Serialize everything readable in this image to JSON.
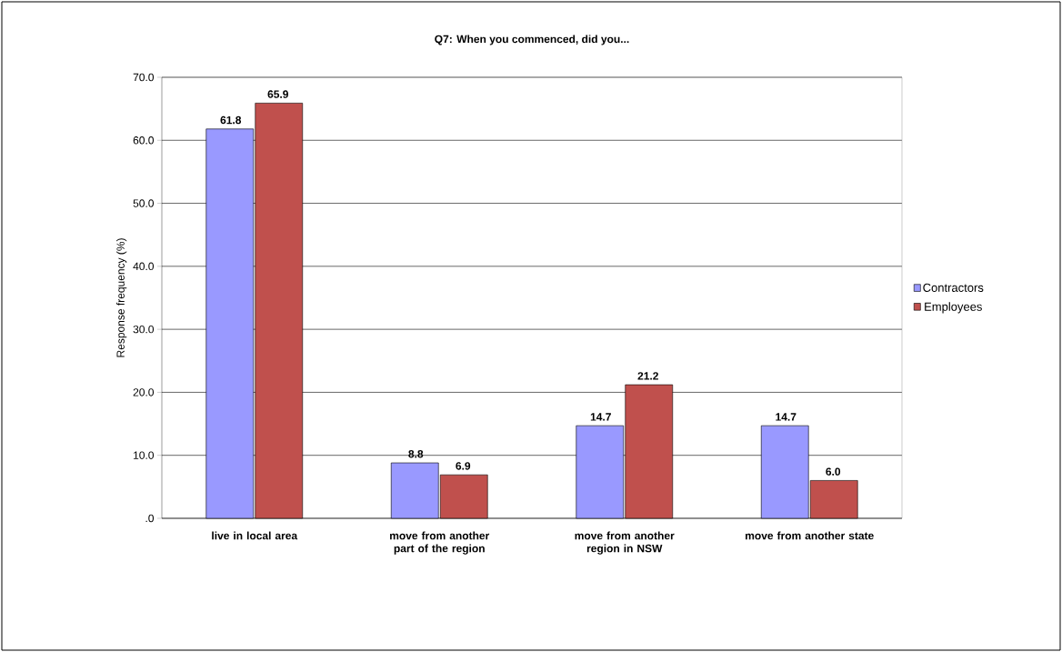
{
  "chart_data": {
    "type": "bar",
    "title": "Q7: When you commenced, did you...",
    "ylabel": "Response frequency (%)",
    "categories": [
      "live in local area",
      "move from another part of the region",
      "move from another region in NSW",
      "move from another state"
    ],
    "series": [
      {
        "name": "Contractors",
        "color": "#9999ff",
        "values": [
          61.8,
          8.8,
          14.7,
          14.7
        ],
        "value_labels": [
          "61.8",
          "8.8",
          "14.7",
          "14.7"
        ]
      },
      {
        "name": "Employees",
        "color": "#c0504d",
        "values": [
          65.9,
          6.9,
          21.2,
          6.0
        ],
        "value_labels": [
          "65.9",
          "6.9",
          "21.2",
          "6.0"
        ]
      }
    ],
    "ylim": [
      0,
      70
    ],
    "yticks": [
      {
        "value": 0,
        "label": ".0"
      },
      {
        "value": 10,
        "label": "10.0"
      },
      {
        "value": 20,
        "label": "20.0"
      },
      {
        "value": 30,
        "label": "30.0"
      },
      {
        "value": 40,
        "label": "40.0"
      },
      {
        "value": 50,
        "label": "50.0"
      },
      {
        "value": 60,
        "label": "60.0"
      },
      {
        "value": 70,
        "label": "70.0"
      }
    ],
    "grid": "y",
    "legend": "right"
  }
}
